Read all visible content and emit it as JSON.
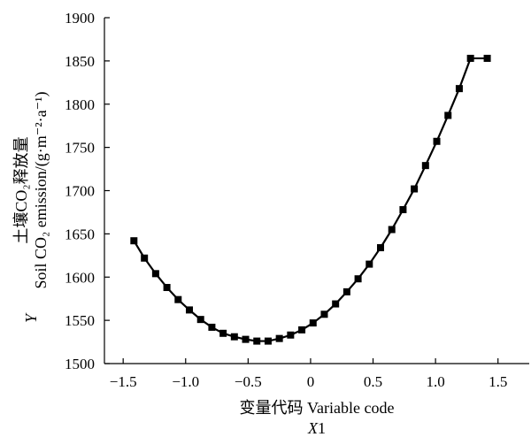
{
  "chart_data": {
    "type": "line",
    "xlabel_line1": "变量代码 Variable code",
    "xlabel_line2_var": "X",
    "xlabel_line2_sub": "1",
    "ylabel_line1": "土壤CO₂释放量",
    "ylabel_line2": "Soil CO₂ emission/(g·m⁻²·a⁻¹)",
    "ylabel_var": "Y",
    "xlim": [
      -1.65,
      1.75
    ],
    "ylim": [
      1500,
      1900
    ],
    "x_ticks": [
      -1.5,
      -1.0,
      -0.5,
      0,
      0.5,
      1.0,
      1.5
    ],
    "x_tick_labels": [
      "−1.5",
      "−1.0",
      "−0.5",
      "0",
      "0.5",
      "1.0",
      "1.5"
    ],
    "y_ticks": [
      1500,
      1550,
      1600,
      1650,
      1700,
      1750,
      1800,
      1850,
      1900
    ],
    "y_tick_labels": [
      "1500",
      "1550",
      "1600",
      "1650",
      "1700",
      "1750",
      "1800",
      "1850",
      "1900"
    ],
    "grid": false,
    "line_color": "#000000",
    "marker": "square",
    "series": [
      {
        "x": [
          -1.414,
          -1.33,
          -1.24,
          -1.15,
          -1.06,
          -0.97,
          -0.88,
          -0.79,
          -0.7,
          -0.61,
          -0.52,
          -0.43,
          -0.34,
          -0.25,
          -0.16,
          -0.07,
          0.02,
          0.11,
          0.2,
          0.29,
          0.38,
          0.47,
          0.56,
          0.65,
          0.74,
          0.83,
          0.92,
          1.01,
          1.1,
          1.19,
          1.28,
          1.414
        ],
        "y": [
          1642,
          1622,
          1604,
          1588,
          1574,
          1562,
          1551,
          1542,
          1535,
          1531,
          1528,
          1526,
          1526,
          1529,
          1533,
          1539,
          1547,
          1557,
          1569,
          1583,
          1598,
          1615,
          1634,
          1655,
          1678,
          1702,
          1729,
          1757,
          1787,
          1818,
          1853,
          1853
        ]
      }
    ]
  }
}
